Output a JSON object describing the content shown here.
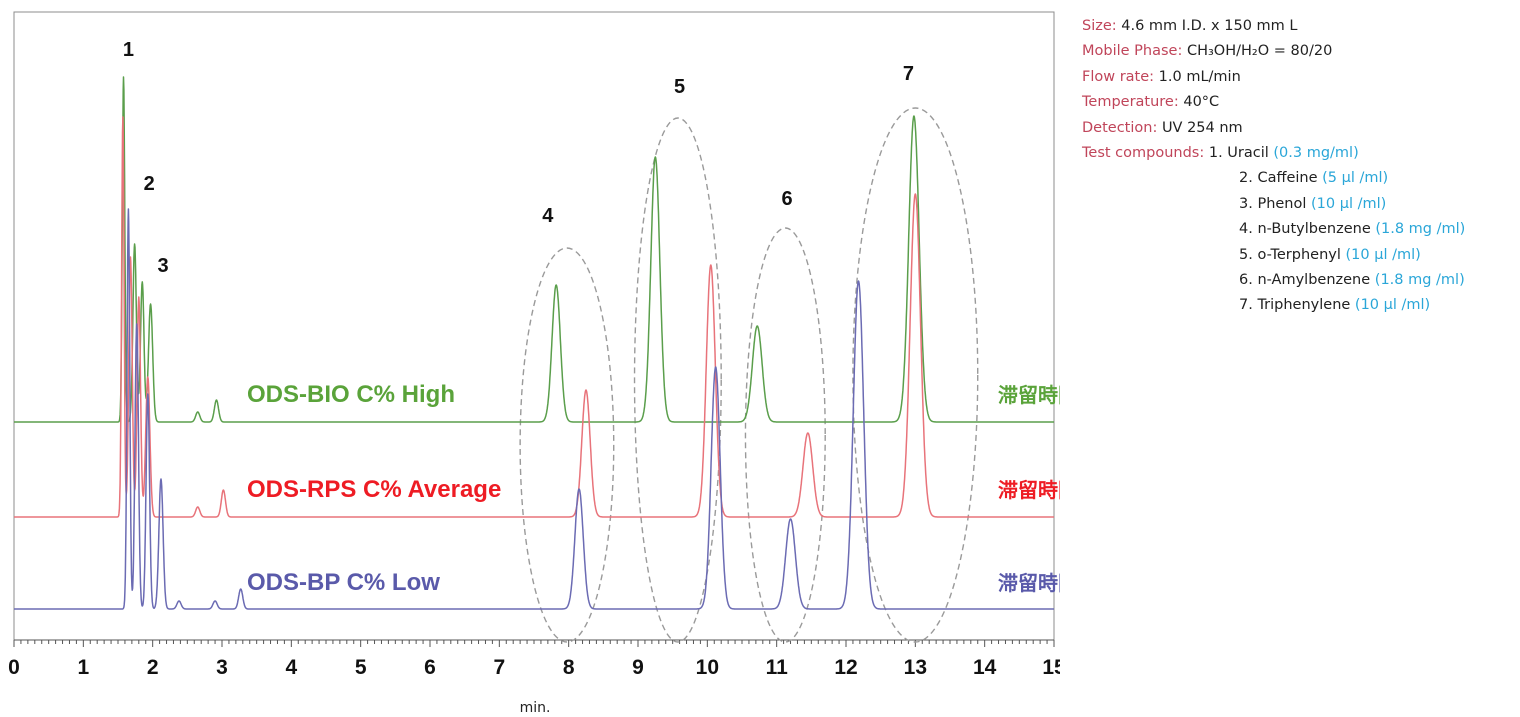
{
  "chart_data": {
    "type": "line",
    "xlabel": "min.",
    "xlim": [
      0,
      15
    ],
    "x_ticks": [
      "0",
      "1",
      "2",
      "3",
      "4",
      "5",
      "6",
      "7",
      "8",
      "9",
      "10",
      "11",
      "12",
      "13",
      "14",
      "15"
    ],
    "peak_labels": [
      {
        "text": "1",
        "x": 1.65
      },
      {
        "text": "2",
        "x": 1.95
      },
      {
        "text": "3",
        "x": 2.15
      },
      {
        "text": "4",
        "x": 7.7
      },
      {
        "text": "5",
        "x": 9.6
      },
      {
        "text": "6",
        "x": 11.15
      },
      {
        "text": "7",
        "x": 12.9
      }
    ],
    "peak_groups": [
      {
        "label": "4",
        "x_range": [
          7.3,
          8.65
        ]
      },
      {
        "label": "5",
        "x_range": [
          8.95,
          10.2
        ]
      },
      {
        "label": "6",
        "x_range": [
          10.55,
          11.7
        ]
      },
      {
        "label": "7",
        "x_range": [
          12.1,
          13.9
        ]
      }
    ],
    "series": [
      {
        "name": "ODS-BIO C% High",
        "retention_label": "滞留時間:長",
        "color": "#5a9e4b",
        "label_color": "#5aa33a",
        "peaks": [
          {
            "x": 1.58,
            "h": 345,
            "w": 0.018
          },
          {
            "x": 1.74,
            "h": 178,
            "w": 0.025
          },
          {
            "x": 1.85,
            "h": 140,
            "w": 0.025
          },
          {
            "x": 1.97,
            "h": 118,
            "w": 0.03
          },
          {
            "x": 2.65,
            "h": 10,
            "w": 0.03
          },
          {
            "x": 2.92,
            "h": 22,
            "w": 0.03
          },
          {
            "x": 7.82,
            "h": 137,
            "w": 0.06
          },
          {
            "x": 9.25,
            "h": 265,
            "w": 0.065
          },
          {
            "x": 10.72,
            "h": 96,
            "w": 0.07
          },
          {
            "x": 12.98,
            "h": 306,
            "w": 0.075
          }
        ]
      },
      {
        "name": "ODS-RPS C% Average",
        "retention_label": "滞留時間:中",
        "color": "#e8737a",
        "label_color": "#ee1c24",
        "peaks": [
          {
            "x": 1.57,
            "h": 400,
            "w": 0.018
          },
          {
            "x": 1.68,
            "h": 260,
            "w": 0.025
          },
          {
            "x": 1.8,
            "h": 220,
            "w": 0.025
          },
          {
            "x": 1.93,
            "h": 140,
            "w": 0.03
          },
          {
            "x": 2.65,
            "h": 10,
            "w": 0.03
          },
          {
            "x": 3.02,
            "h": 27,
            "w": 0.03
          },
          {
            "x": 8.25,
            "h": 127,
            "w": 0.06
          },
          {
            "x": 10.05,
            "h": 252,
            "w": 0.065
          },
          {
            "x": 11.45,
            "h": 84,
            "w": 0.07
          },
          {
            "x": 13.0,
            "h": 323,
            "w": 0.075
          }
        ]
      },
      {
        "name": "ODS-BP C% Low",
        "retention_label": "滞留時間:短",
        "color": "#6b6bb3",
        "label_color": "#5a5aaa",
        "peaks": [
          {
            "x": 1.65,
            "h": 400,
            "w": 0.02
          },
          {
            "x": 1.77,
            "h": 285,
            "w": 0.025
          },
          {
            "x": 1.93,
            "h": 215,
            "w": 0.025
          },
          {
            "x": 2.12,
            "h": 130,
            "w": 0.03
          },
          {
            "x": 2.38,
            "h": 8,
            "w": 0.03
          },
          {
            "x": 2.9,
            "h": 8,
            "w": 0.03
          },
          {
            "x": 3.27,
            "h": 20,
            "w": 0.03
          },
          {
            "x": 8.15,
            "h": 120,
            "w": 0.06
          },
          {
            "x": 10.12,
            "h": 242,
            "w": 0.065
          },
          {
            "x": 11.2,
            "h": 90,
            "w": 0.07
          },
          {
            "x": 12.18,
            "h": 328,
            "w": 0.075
          }
        ]
      }
    ],
    "grid": false
  },
  "conditions": {
    "size_label": "Size:",
    "size_value": "4.6 mm I.D. x 150 mm L",
    "mobile_label": "Mobile Phase:",
    "mobile_value": "CH₃OH/H₂O = 80/20",
    "flow_label": "Flow rate:",
    "flow_value": "1.0 mL/min",
    "temp_label": "Temperature:",
    "temp_value": "40°C",
    "detect_label": "Detection:",
    "detect_value": "UV 254 nm",
    "compounds_label": "Test compounds:",
    "compounds": [
      {
        "name": "1. Uracil",
        "conc": "(0.3 mg/ml)"
      },
      {
        "name": "2. Caffeine",
        "conc": "(5 µl /ml)"
      },
      {
        "name": "3. Phenol",
        "conc": "(10 µl /ml)"
      },
      {
        "name": "4. n-Butylbenzene",
        "conc": "(1.8 mg /ml)"
      },
      {
        "name": "5. o-Terphenyl",
        "conc": "(10 µl /ml)"
      },
      {
        "name": "6. n-Amylbenzene",
        "conc": "(1.8 mg /ml)"
      },
      {
        "name": "7. Triphenylene",
        "conc": "(10 µl /ml)"
      }
    ]
  }
}
